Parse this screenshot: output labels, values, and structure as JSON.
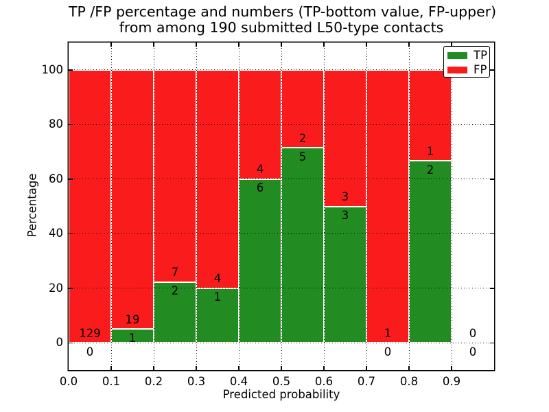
{
  "figure": {
    "title_line1": "TP /FP percentage and numbers (TP-bottom value, FP-upper)",
    "title_line2": "from among 190 submitted L50-type contacts",
    "xlabel": "Predicted probability",
    "ylabel": "Percentage"
  },
  "legend": {
    "position": "upper right",
    "entries": [
      {
        "label": "TP",
        "color": "#228c22"
      },
      {
        "label": "FP",
        "color": "#fa1c1c"
      }
    ]
  },
  "colors": {
    "tp": "#228c22",
    "fp": "#fa1c1c",
    "bar_edge": "#ffffff",
    "grid": "#000000",
    "text": "#000000",
    "background": "#ffffff"
  },
  "chart_data": {
    "type": "bar",
    "stacked": true,
    "normalized": "each bin scaled to 100%",
    "title": "TP /FP percentage and numbers (TP-bottom value, FP-upper) from among 190 submitted L50-type contacts",
    "xlabel": "Predicted probability",
    "ylabel": "Percentage",
    "xlim": [
      0.0,
      1.0
    ],
    "ylim": [
      -10,
      110
    ],
    "x_tick_labels": [
      "0.0",
      "0.1",
      "0.2",
      "0.3",
      "0.4",
      "0.5",
      "0.6",
      "0.7",
      "0.8",
      "0.9"
    ],
    "y_ticks": [
      0,
      20,
      40,
      60,
      80,
      100
    ],
    "grid": "dotted black, both axes, drawn above bars",
    "legend_position": "upper right",
    "total_contacts": 190,
    "series": [
      {
        "name": "TP",
        "color": "#228c22"
      },
      {
        "name": "FP",
        "color": "#fa1c1c"
      }
    ],
    "bins": [
      {
        "range": [
          0.0,
          0.1
        ],
        "tp": 0,
        "fp": 129,
        "tp_pct": 0.0,
        "fp_pct": 100.0
      },
      {
        "range": [
          0.1,
          0.2
        ],
        "tp": 1,
        "fp": 19,
        "tp_pct": 5.0,
        "fp_pct": 95.0
      },
      {
        "range": [
          0.2,
          0.3
        ],
        "tp": 2,
        "fp": 7,
        "tp_pct": 22.2,
        "fp_pct": 77.8
      },
      {
        "range": [
          0.3,
          0.4
        ],
        "tp": 1,
        "fp": 4,
        "tp_pct": 20.0,
        "fp_pct": 80.0
      },
      {
        "range": [
          0.4,
          0.5
        ],
        "tp": 6,
        "fp": 4,
        "tp_pct": 60.0,
        "fp_pct": 40.0
      },
      {
        "range": [
          0.5,
          0.6
        ],
        "tp": 5,
        "fp": 2,
        "tp_pct": 71.4,
        "fp_pct": 28.6
      },
      {
        "range": [
          0.6,
          0.7
        ],
        "tp": 3,
        "fp": 3,
        "tp_pct": 50.0,
        "fp_pct": 50.0
      },
      {
        "range": [
          0.7,
          0.8
        ],
        "tp": 0,
        "fp": 1,
        "tp_pct": 0.0,
        "fp_pct": 100.0
      },
      {
        "range": [
          0.8,
          0.9
        ],
        "tp": 2,
        "fp": 1,
        "tp_pct": 66.7,
        "fp_pct": 33.3
      },
      {
        "range": [
          0.9,
          1.0
        ],
        "tp": 0,
        "fp": 0,
        "tp_pct": null,
        "fp_pct": null
      }
    ]
  }
}
